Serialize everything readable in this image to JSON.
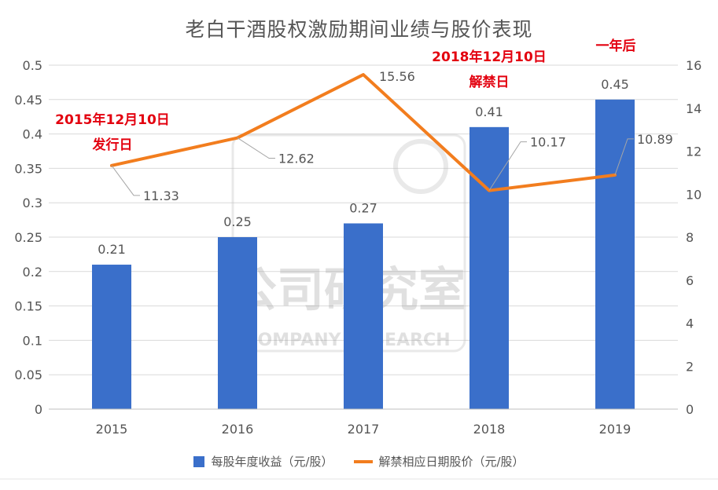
{
  "chart_data": {
    "type": "bar",
    "title": "老白干酒股权激励期间业绩与股价表现",
    "categories": [
      "2015",
      "2016",
      "2017",
      "2018",
      "2019"
    ],
    "series": [
      {
        "name": "每股年度收益（元/股）",
        "kind": "bar",
        "axis": "left",
        "values": [
          0.21,
          0.25,
          0.27,
          0.41,
          0.45
        ]
      },
      {
        "name": "解禁相应日期股价（元/股）",
        "kind": "line",
        "axis": "right",
        "values": [
          11.33,
          12.62,
          15.56,
          10.17,
          10.89
        ]
      }
    ],
    "y_left": {
      "range": [
        0,
        0.5
      ],
      "ticks": [
        "0",
        "0.05",
        "0.1",
        "0.15",
        "0.2",
        "0.25",
        "0.3",
        "0.35",
        "0.4",
        "0.45",
        "0.5"
      ]
    },
    "y_right": {
      "range": [
        0,
        16
      ],
      "ticks": [
        "0",
        "2",
        "4",
        "6",
        "8",
        "10",
        "12",
        "14",
        "16"
      ]
    },
    "annotations": [
      {
        "lines": [
          "2015年12月10日",
          "发行日"
        ]
      },
      {
        "lines": [
          "2018年12月10日",
          "解禁日"
        ]
      },
      {
        "lines": [
          "一年后"
        ]
      }
    ],
    "watermark": {
      "main": "公司研究室",
      "sub": "COMPANY RESEARCH"
    },
    "legend_position": "bottom",
    "grid": true,
    "colors": {
      "bar": "#3a6fca",
      "line": "#f27d1e",
      "annotation": "#e3000f",
      "text": "#555555",
      "grid": "#d9d9d9"
    }
  }
}
